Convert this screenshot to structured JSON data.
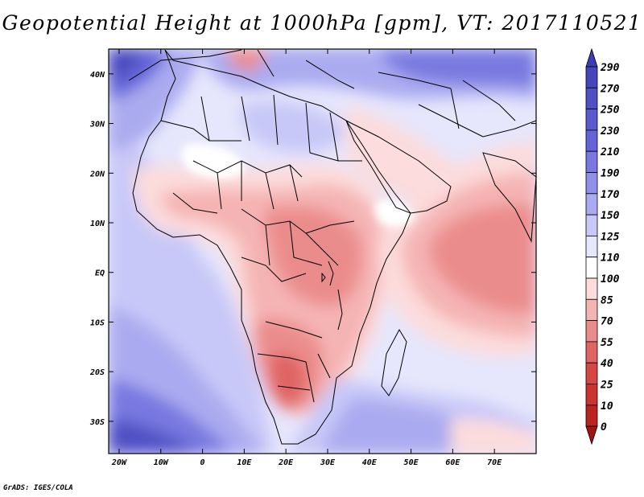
{
  "chart_data": {
    "type": "heatmap",
    "title": "Geopotential Height at 1000hPa [gpm], VT: 2017110521",
    "variable": "Geopotential Height at 1000hPa",
    "units": "gpm",
    "valid_time": "2017110521",
    "x_ticks": [
      "20W",
      "10W",
      "0",
      "10E",
      "20E",
      "30E",
      "40E",
      "50E",
      "60E",
      "70E"
    ],
    "x_tick_values": [
      -20,
      -10,
      0,
      10,
      20,
      30,
      40,
      50,
      60,
      70
    ],
    "y_ticks": [
      "40N",
      "30N",
      "20N",
      "10N",
      "EQ",
      "10S",
      "20S",
      "30S"
    ],
    "y_tick_values": [
      40,
      30,
      20,
      10,
      0,
      -10,
      -20,
      -30
    ],
    "xlim": [
      -22.5,
      80
    ],
    "ylim": [
      -36.5,
      45
    ],
    "colorbar": {
      "levels": [
        "290",
        "270",
        "250",
        "230",
        "210",
        "190",
        "170",
        "150",
        "125",
        "110",
        "100",
        "85",
        "70",
        "55",
        "40",
        "25",
        "10",
        "0"
      ],
      "colors": [
        "#3c3cb4",
        "#4646bc",
        "#5050c4",
        "#5a5ace",
        "#6464d8",
        "#7878e0",
        "#9090e8",
        "#aaaaf0",
        "#c8c8f8",
        "#e6e6fc",
        "#ffffff",
        "#fcdcdc",
        "#f5b4b4",
        "#eb8c8c",
        "#e06464",
        "#d64646",
        "#cc3232",
        "#bb2222",
        "#a01414"
      ]
    }
  },
  "credit": "GrADS: IGES/COLA"
}
